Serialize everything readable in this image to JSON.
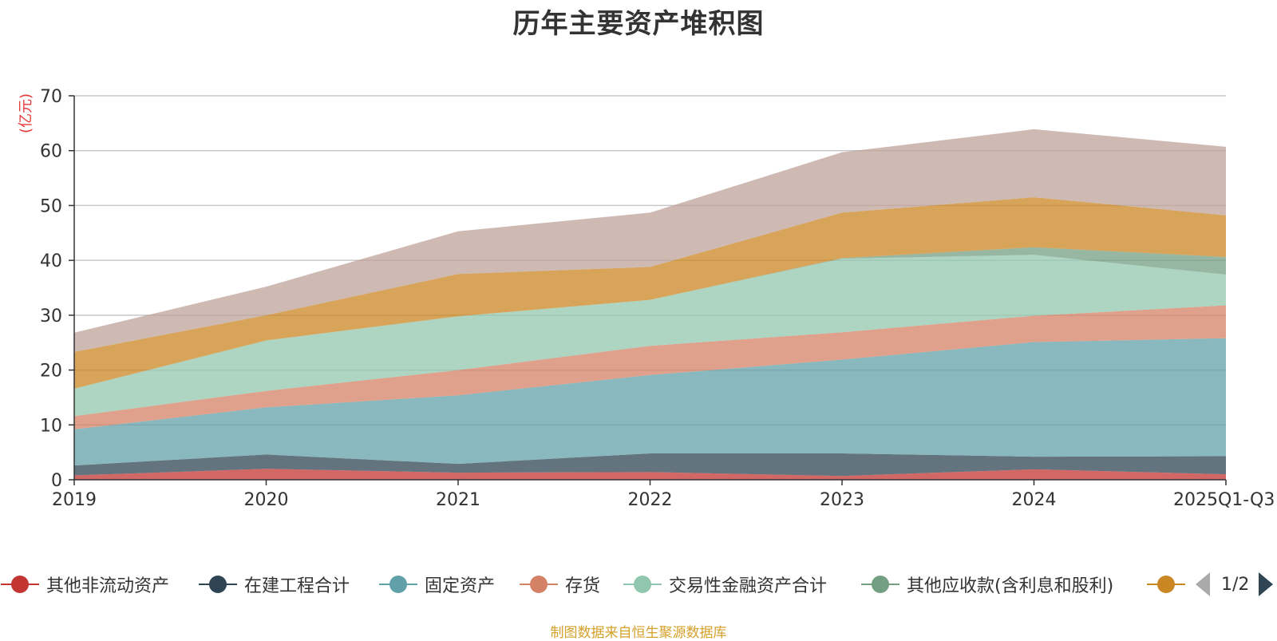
{
  "chart_data": {
    "type": "area",
    "stacked": true,
    "title": "历年主要资产堆积图",
    "ylabel": "(亿元)",
    "xlabel": "",
    "ylim": [
      0,
      70
    ],
    "yticks": [
      0,
      10,
      20,
      30,
      40,
      50,
      60,
      70
    ],
    "grid": true,
    "categories": [
      "2019",
      "2020",
      "2021",
      "2022",
      "2023",
      "2024",
      "2025Q1-Q3"
    ],
    "series": [
      {
        "name": "其他非流动资产",
        "color": "#c23531",
        "values": [
          0.8,
          2.0,
          1.3,
          1.4,
          0.7,
          1.9,
          1.0
        ]
      },
      {
        "name": "在建工程合计",
        "color": "#2f4554",
        "values": [
          1.8,
          2.6,
          1.6,
          3.4,
          4.1,
          2.3,
          3.3
        ]
      },
      {
        "name": "固定资产",
        "color": "#61a0a8",
        "values": [
          6.6,
          8.6,
          12.5,
          14.3,
          17.1,
          20.9,
          21.5
        ]
      },
      {
        "name": "存货",
        "color": "#d48265",
        "values": [
          2.4,
          3.0,
          4.6,
          5.3,
          5.0,
          4.8,
          6.0
        ]
      },
      {
        "name": "交易性金融资产合计",
        "color": "#91c7ae",
        "values": [
          5.0,
          9.2,
          9.8,
          8.4,
          13.4,
          11.1,
          5.6
        ]
      },
      {
        "name": "其他应收款(含利息和股利)",
        "color": "#749f83",
        "values": [
          0.0,
          0.0,
          0.0,
          0.0,
          0.1,
          1.4,
          3.2
        ]
      },
      {
        "name": "",
        "color": "#ca8622",
        "values": [
          6.7,
          4.6,
          7.7,
          6.0,
          8.3,
          9.1,
          7.6
        ]
      },
      {
        "name": "",
        "color": "#bda29a",
        "values": [
          3.5,
          5.2,
          7.8,
          9.9,
          11.0,
          12.4,
          12.5
        ]
      }
    ]
  },
  "legend": {
    "items": [
      {
        "label": "其他非流动资产",
        "color": "#c23531"
      },
      {
        "label": "在建工程合计",
        "color": "#2f4554"
      },
      {
        "label": "固定资产",
        "color": "#61a0a8"
      },
      {
        "label": "存货",
        "color": "#d48265"
      },
      {
        "label": "交易性金融资产合计",
        "color": "#91c7ae"
      },
      {
        "label": "其他应收款(含利息和股利)",
        "color": "#749f83"
      },
      {
        "label": "",
        "color": "#ca8622"
      }
    ],
    "pager": "1/2"
  },
  "source_note": "制图数据来自恒生聚源数据库"
}
